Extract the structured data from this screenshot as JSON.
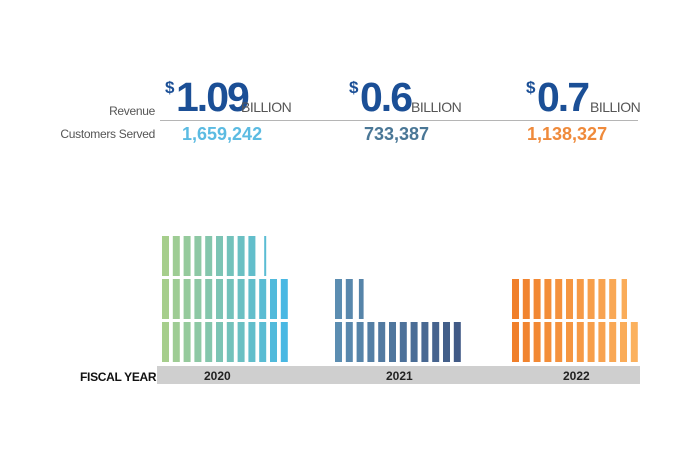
{
  "labels": {
    "revenue": "Revenue",
    "customers": "Customers Served",
    "fiscal_year": "FISCAL YEAR"
  },
  "chart_data": {
    "type": "bar",
    "categories": [
      "2020",
      "2021",
      "2022"
    ],
    "series": [
      {
        "values": [
          1.09,
          0.6,
          0.7
        ]
      },
      {
        "values": [
          1659242,
          733387,
          1138327
        ]
      }
    ],
    "revenue_display": [
      {
        "currency": "$",
        "amount": "1.09",
        "unit": "BILLION"
      },
      {
        "currency": "$",
        "amount": "0.6",
        "unit": "BILLION"
      },
      {
        "currency": "$",
        "amount": "0.7",
        "unit": "BILLION"
      }
    ],
    "customers_display": [
      "1,659,242",
      "733,387",
      "1,138,327"
    ],
    "unit_value": 50000,
    "colors": {
      "2020_from": "#a6ce8c",
      "2020_to": "#49b8e3",
      "2021_from": "#5b8db1",
      "2021_to": "#415a86",
      "2022_from": "#f07f2a",
      "2022_to": "#fbb15e",
      "revenue_2020": "#1b4f96",
      "revenue_2021": "#1b4f96",
      "revenue_2022": "#1b4f96",
      "customers_2020": "#5bbbe2",
      "customers_2021": "#4a7796",
      "customers_2022": "#ef8a3b"
    }
  }
}
